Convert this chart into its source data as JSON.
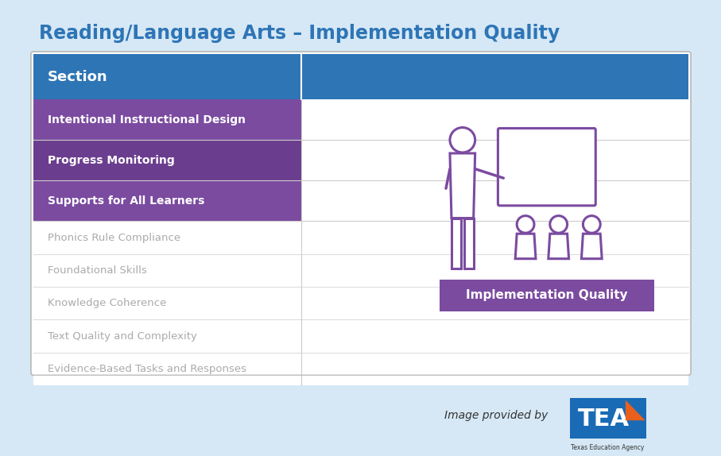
{
  "title": "Reading/Language Arts – Implementation Quality",
  "title_color": "#2E75B6",
  "title_fontsize": 17,
  "background_outer": "#D6E8F5",
  "background_inner": "#FFFFFF",
  "header_bg": "#2E75B6",
  "header_text": "Section",
  "header_text_color": "#FFFFFF",
  "header_fontsize": 13,
  "purple_rows": [
    {
      "label": "Intentional Instructional Design",
      "bg": "#7B4BA0"
    },
    {
      "label": "Progress Monitoring",
      "bg": "#6B3D8E"
    },
    {
      "label": "Supports for All Learners",
      "bg": "#7B4BA0"
    }
  ],
  "gray_rows": [
    "Phonics Rule Compliance",
    "Foundational Skills",
    "Knowledge Coherence",
    "Text Quality and Complexity",
    "Evidence-Based Tasks and Responses"
  ],
  "icon_color": "#7B4BA0",
  "label_box_bg": "#7B4BA0",
  "label_box_text": "Implementation Quality",
  "label_box_text_color": "#FFFFFF",
  "footer_text": "Image provided by",
  "footer_text_color": "#333333",
  "tea_blue": "#1A6BB5",
  "tea_orange": "#E8601C"
}
